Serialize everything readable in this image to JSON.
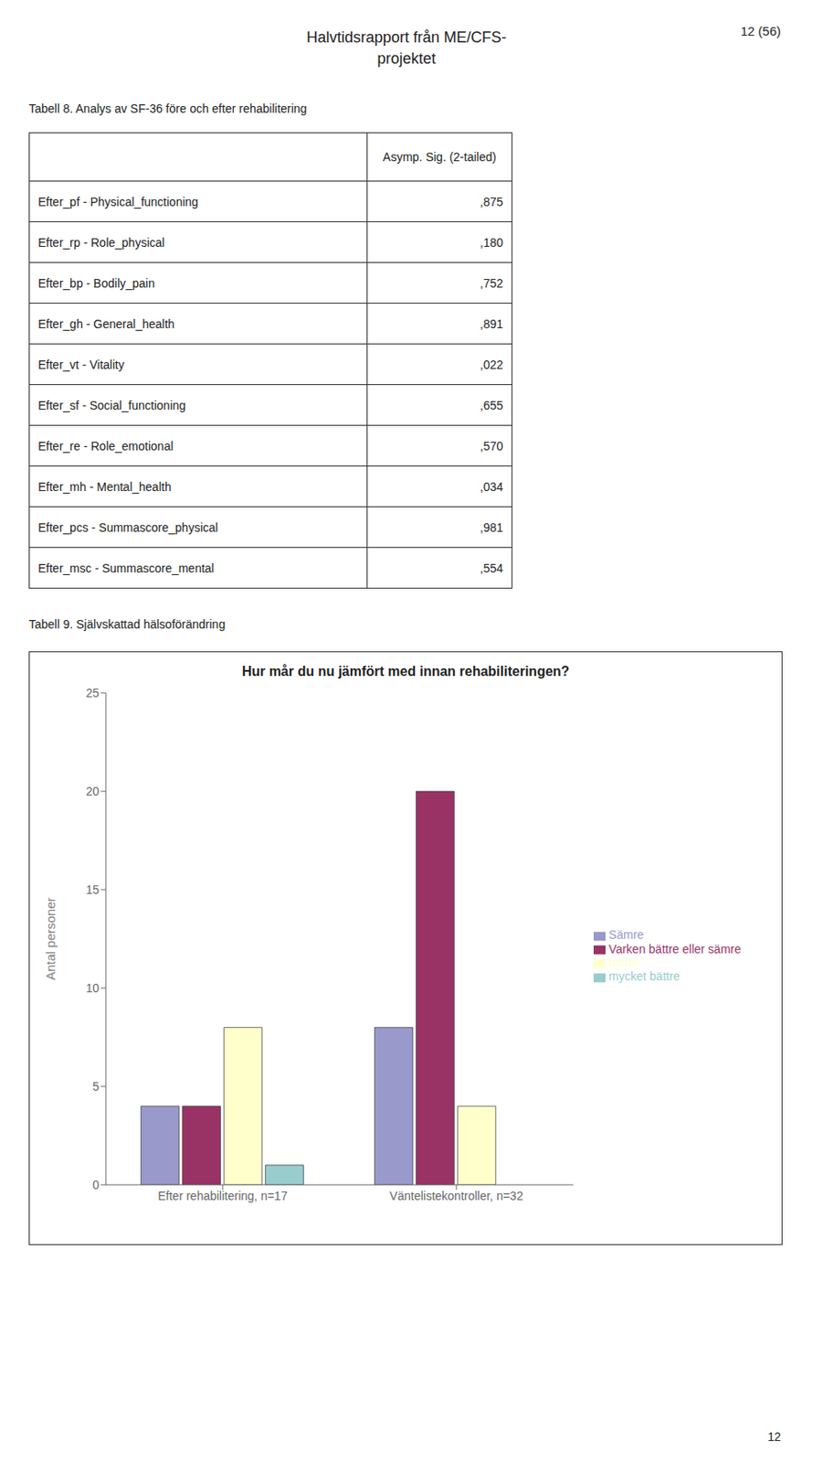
{
  "page_number": "12 (56)",
  "page_header": "Halvtidsrapport från ME/CFS-\nprojektet",
  "footer": "12",
  "table": {
    "title": "Tabell 8. Analys av SF-36 före och efter rehabilitering",
    "column_header": "Asymp. Sig. (2-tailed)",
    "rows": [
      [
        "Efter_pf - Physical_functioning",
        ",875"
      ],
      [
        "Efter_rp - Role_physical",
        ",180"
      ],
      [
        "Efter_bp - Bodily_pain",
        ",752"
      ],
      [
        "Efter_gh - General_health",
        ",891"
      ],
      [
        "Efter_vt - Vitality",
        ",022"
      ],
      [
        "Efter_sf - Social_functioning",
        ",655"
      ],
      [
        "Efter_re - Role_emotional",
        ",570"
      ],
      [
        "Efter_mh - Mental_health",
        ",034"
      ],
      [
        "Efter_pcs - Summascore_physical",
        ",981"
      ],
      [
        "Efter_msc - Summascore_mental",
        ",554"
      ]
    ]
  },
  "chart_heading": "Tabell 9. Självskattad hälsoförändring",
  "chart_data": {
    "type": "bar",
    "title": "Hur mår du nu jämfört med innan rehabiliteringen?",
    "ylabel": "Antal personer",
    "categories": [
      "Efter rehabilitering, n=17",
      "Väntelistekontroller, n=32"
    ],
    "series": [
      {
        "name": "Sämre",
        "color": "#9999cc",
        "values": [
          4,
          8
        ]
      },
      {
        "name": "Varken bättre eller sämre",
        "color": "#993366",
        "values": [
          4,
          20
        ]
      },
      {
        "name": "bättre",
        "color": "#ffffcc",
        "values": [
          8,
          4
        ]
      },
      {
        "name": "mycket bättre",
        "color": "#99cccc",
        "values": [
          1,
          0
        ]
      }
    ],
    "ylim": [
      0,
      25
    ],
    "yticks": [
      0,
      5,
      10,
      15,
      20,
      25
    ],
    "grid": false,
    "legend": "right"
  }
}
